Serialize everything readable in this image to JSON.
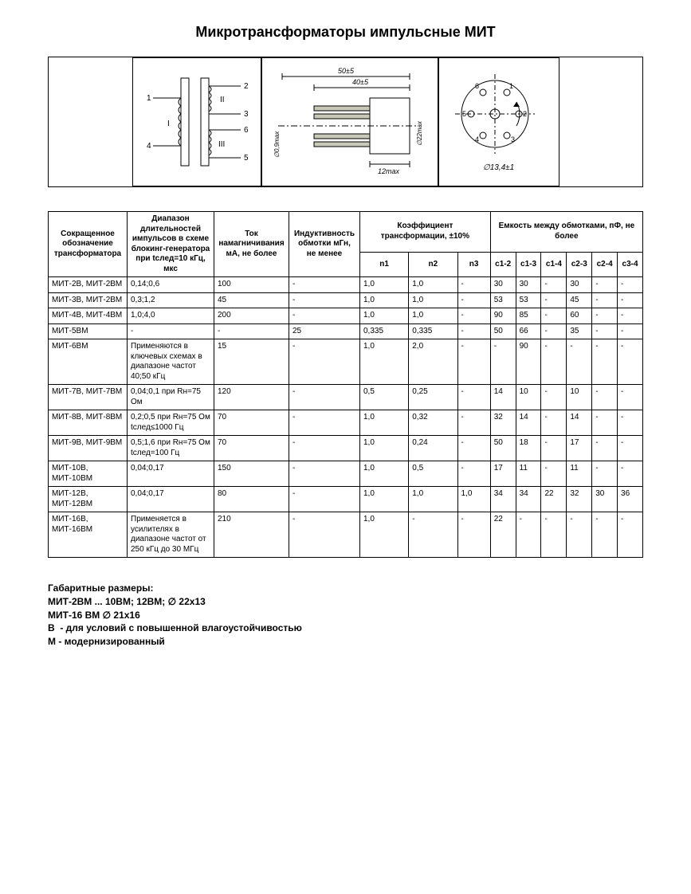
{
  "title": "Микротрансформаторы импульсные МИТ",
  "diagrams": {
    "schematic": {
      "pins": [
        "1",
        "2",
        "3",
        "4",
        "5",
        "6"
      ],
      "windings": [
        "I",
        "II",
        "III"
      ]
    },
    "dimensions": {
      "length_total": "50±5",
      "length_body": "40±5",
      "lead_dia": "∅0,9max",
      "body_dia": "∅22max",
      "lead_len": "12max"
    },
    "pinout": {
      "pins": [
        "1",
        "2",
        "3",
        "4",
        "5",
        "6"
      ],
      "note": "∅13,4±1"
    }
  },
  "table": {
    "headers": {
      "designation": "Сокращенное обозначение трансформатора",
      "pulse_range": "Диапазон длительностей импульсов в схеме блокинг-генератора при tслед=10 кГц, мкс",
      "mag_current": "Ток намагничивания мА, не более",
      "inductance": "Индуктивность обмотки мГн, не менее",
      "trans_coef": "Коэффициент трансформации, ±10%",
      "capacitance": "Емкость между обмотками, пФ, не более",
      "n1": "n1",
      "n2": "n2",
      "n3": "n3",
      "c12": "c1-2",
      "c13": "c1-3",
      "c14": "c1-4",
      "c23": "c2-3",
      "c24": "c2-4",
      "c34": "c3-4"
    },
    "rows": [
      {
        "d": "МИТ-2В, МИТ-2ВМ",
        "r": "0,14;0,6",
        "i": "100",
        "l": "-",
        "n1": "1,0",
        "n2": "1,0",
        "n3": "-",
        "c12": "30",
        "c13": "30",
        "c14": "-",
        "c23": "30",
        "c24": "-",
        "c34": "-"
      },
      {
        "d": "МИТ-3В, МИТ-2ВМ",
        "r": "0,3;1,2",
        "i": "45",
        "l": "-",
        "n1": "1,0",
        "n2": "1,0",
        "n3": "-",
        "c12": "53",
        "c13": "53",
        "c14": "-",
        "c23": "45",
        "c24": "-",
        "c34": "-"
      },
      {
        "d": "МИТ-4В, МИТ-4ВМ",
        "r": "1,0;4,0",
        "i": "200",
        "l": "-",
        "n1": "1,0",
        "n2": "1,0",
        "n3": "-",
        "c12": "90",
        "c13": "85",
        "c14": "-",
        "c23": "60",
        "c24": "-",
        "c34": "-"
      },
      {
        "d": "МИТ-5ВМ",
        "r": "-",
        "i": "-",
        "l": "25",
        "n1": "0,335",
        "n2": "0,335",
        "n3": "-",
        "c12": "50",
        "c13": "66",
        "c14": "-",
        "c23": "35",
        "c24": "-",
        "c34": "-"
      },
      {
        "d": "МИТ-6ВМ",
        "r": "Применяются в ключевых схемах в диапазоне частот 40;50 кГц",
        "i": "15",
        "l": "-",
        "n1": "1,0",
        "n2": "2,0",
        "n3": "-",
        "c12": "-",
        "c13": "90",
        "c14": "-",
        "c23": "-",
        "c24": "-",
        "c34": "-"
      },
      {
        "d": "МИТ-7В, МИТ-7ВМ",
        "r": "0,04;0,1 при Rн=75 Ом",
        "i": "120",
        "l": "-",
        "n1": "0,5",
        "n2": "0,25",
        "n3": "-",
        "c12": "14",
        "c13": "10",
        "c14": "-",
        "c23": "10",
        "c24": "-",
        "c34": "-"
      },
      {
        "d": "МИТ-8В, МИТ-8ВМ",
        "r": "0,2;0,5 при Rн=75 Ом tслед≤1000 Гц",
        "i": "70",
        "l": "-",
        "n1": "1,0",
        "n2": "0,32",
        "n3": "-",
        "c12": "32",
        "c13": "14",
        "c14": "-",
        "c23": "14",
        "c24": "-",
        "c34": "-"
      },
      {
        "d": "МИТ-9В, МИТ-9ВМ",
        "r": "0,5;1,6 при Rн=75 Ом tслед=100 Гц",
        "i": "70",
        "l": "-",
        "n1": "1,0",
        "n2": "0,24",
        "n3": "-",
        "c12": "50",
        "c13": "18",
        "c14": "-",
        "c23": "17",
        "c24": "-",
        "c34": "-"
      },
      {
        "d": "МИТ-10В, МИТ-10ВМ",
        "r": "0,04;0,17",
        "i": "150",
        "l": "-",
        "n1": "1,0",
        "n2": "0,5",
        "n3": "-",
        "c12": "17",
        "c13": "11",
        "c14": "-",
        "c23": "11",
        "c24": "-",
        "c34": "-"
      },
      {
        "d": "МИТ-12В, МИТ-12ВМ",
        "r": "0,04;0,17",
        "i": "80",
        "l": "-",
        "n1": "1,0",
        "n2": "1,0",
        "n3": "1,0",
        "c12": "34",
        "c13": "34",
        "c14": "22",
        "c23": "32",
        "c24": "30",
        "c34": "36"
      },
      {
        "d": "МИТ-16В, МИТ-16ВМ",
        "r": "Применяется в усилителях в диапазоне частот от 250 кГц до 30 МГц",
        "i": "210",
        "l": "-",
        "n1": "1,0",
        "n2": "-",
        "n3": "-",
        "c12": "22",
        "c13": "-",
        "c14": "-",
        "c23": "-",
        "c24": "-",
        "c34": "-"
      }
    ]
  },
  "notes": [
    "Габаритные размеры:",
    "МИТ-2ВМ ... 10ВМ; 12ВМ; ∅ 22x13",
    "МИТ-16 ВМ ∅ 21x16",
    "В  - для условий с повышенной влагоустойчивостью",
    "М - модернизированный"
  ],
  "style": {
    "background": "#ffffff",
    "text_color": "#000000",
    "border_color": "#000000",
    "title_fontsize": 18,
    "table_fontsize": 10,
    "notes_fontsize": 12
  }
}
